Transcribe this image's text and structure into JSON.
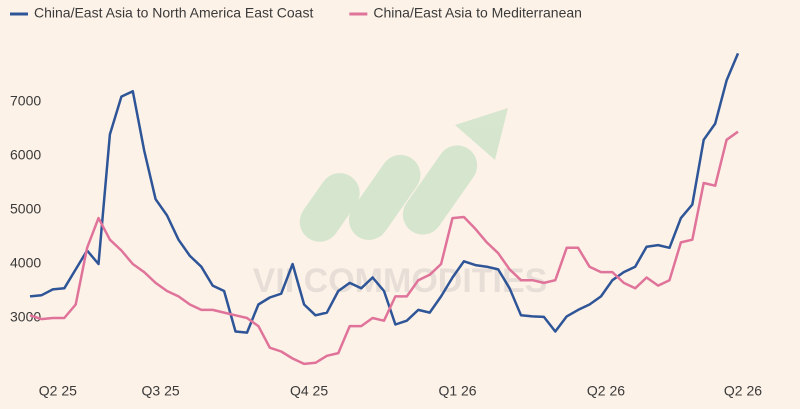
{
  "chart_data": {
    "type": "line",
    "watermark": "VII COMMODITIES",
    "categories": [
      null,
      null,
      "Q2 25",
      null,
      null,
      null,
      null,
      null,
      null,
      null,
      null,
      "Q3 25",
      null,
      null,
      null,
      null,
      null,
      null,
      null,
      null,
      null,
      null,
      null,
      null,
      "Q4 25",
      null,
      null,
      null,
      null,
      null,
      null,
      null,
      null,
      null,
      null,
      null,
      null,
      "Q1 26",
      null,
      null,
      null,
      null,
      null,
      null,
      null,
      null,
      null,
      null,
      null,
      null,
      "Q2 26",
      null,
      null,
      null,
      null,
      null,
      null,
      null,
      null,
      null,
      null,
      null,
      "Q2 26"
    ],
    "series": [
      {
        "name": "China/East Asia to North America East Coast",
        "color": "#2e5597",
        "values": [
          3400,
          3420,
          3530,
          3550,
          3900,
          4250,
          4000,
          6400,
          7100,
          7200,
          6100,
          5200,
          4900,
          4450,
          4150,
          3950,
          3600,
          3500,
          2750,
          2730,
          3250,
          3380,
          3450,
          4000,
          3250,
          3050,
          3100,
          3500,
          3650,
          3550,
          3750,
          3500,
          2880,
          2950,
          3150,
          3100,
          3400,
          3750,
          4050,
          3980,
          3950,
          3900,
          3550,
          3050,
          3030,
          3020,
          2750,
          3030,
          3150,
          3250,
          3400,
          3700,
          3850,
          3950,
          4320,
          4350,
          4300,
          4850,
          5100,
          6300,
          6600,
          7400,
          7900
        ]
      },
      {
        "name": "China/East Asia to Mediterranean",
        "color": "#e0739a",
        "values": [
          3050,
          2980,
          3000,
          3000,
          3250,
          4300,
          4850,
          4450,
          4250,
          4000,
          3850,
          3650,
          3500,
          3400,
          3250,
          3150,
          3150,
          3100,
          3050,
          3000,
          2850,
          2450,
          2380,
          2250,
          2150,
          2170,
          2300,
          2350,
          2850,
          2850,
          3000,
          2950,
          3400,
          3400,
          3700,
          3800,
          4000,
          4850,
          4870,
          4650,
          4400,
          4200,
          3900,
          3700,
          3700,
          3650,
          3700,
          4300,
          4300,
          3950,
          3850,
          3850,
          3650,
          3550,
          3750,
          3600,
          3700,
          4400,
          4450,
          5500,
          5450,
          6300,
          6450
        ]
      }
    ],
    "ylim": [
      1900,
      8200
    ],
    "yticks": [
      3000,
      4000,
      5000,
      6000,
      7000
    ],
    "grid": false
  }
}
